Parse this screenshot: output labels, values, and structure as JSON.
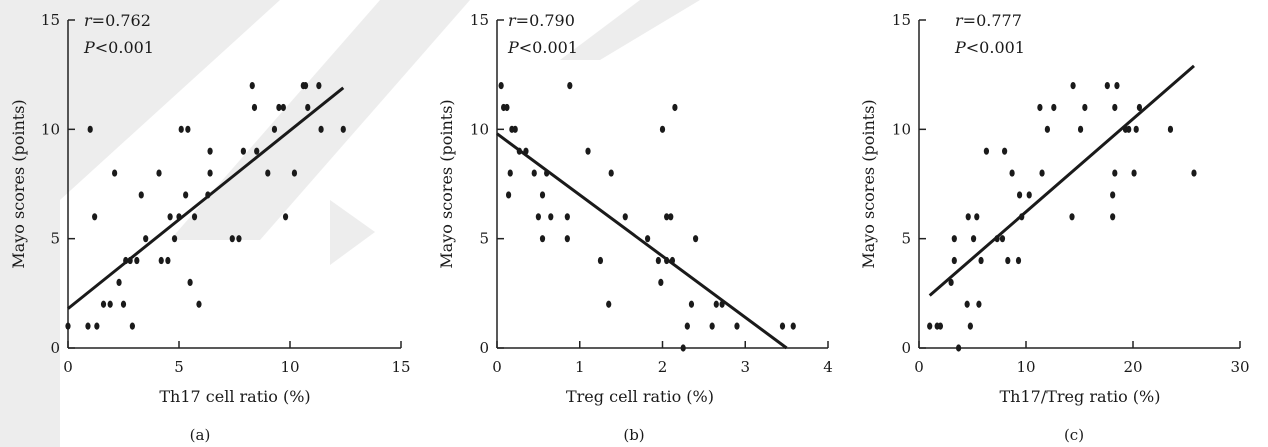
{
  "chart_data": [
    {
      "type": "scatter",
      "panel_label": "(a)",
      "xlabel": "Th17 cell ratio (%)",
      "ylabel": "Mayo scores (points)",
      "xlim": [
        0,
        15
      ],
      "ylim": [
        0,
        15
      ],
      "xticks": [
        0,
        5,
        10,
        15
      ],
      "yticks": [
        0,
        5,
        10,
        15
      ],
      "stat_r_symbol": "r",
      "stat_r_value": "=0.762",
      "stat_p_symbol": "P",
      "stat_p_value": "<0.001",
      "trend_line": {
        "x": [
          0,
          12.4
        ],
        "y": [
          1.8,
          11.9
        ]
      },
      "points": [
        [
          0,
          1
        ],
        [
          1.0,
          10
        ],
        [
          0.9,
          1
        ],
        [
          1.2,
          6
        ],
        [
          1.3,
          1
        ],
        [
          1.6,
          2
        ],
        [
          1.9,
          2
        ],
        [
          2.1,
          8
        ],
        [
          2.3,
          3
        ],
        [
          2.5,
          2
        ],
        [
          2.6,
          4
        ],
        [
          2.8,
          4
        ],
        [
          2.9,
          1
        ],
        [
          3.1,
          4
        ],
        [
          3.3,
          7
        ],
        [
          3.5,
          5
        ],
        [
          4.1,
          8
        ],
        [
          4.2,
          4
        ],
        [
          4.5,
          4
        ],
        [
          4.6,
          6
        ],
        [
          4.8,
          5
        ],
        [
          5.0,
          6
        ],
        [
          5.1,
          10
        ],
        [
          5.3,
          7
        ],
        [
          5.4,
          10
        ],
        [
          5.5,
          3
        ],
        [
          5.7,
          6
        ],
        [
          5.9,
          2
        ],
        [
          6.3,
          7
        ],
        [
          6.4,
          9
        ],
        [
          6.4,
          8
        ],
        [
          7.4,
          5
        ],
        [
          7.7,
          5
        ],
        [
          7.9,
          9
        ],
        [
          8.3,
          12
        ],
        [
          8.4,
          11
        ],
        [
          8.5,
          9
        ],
        [
          9.0,
          8
        ],
        [
          9.3,
          10
        ],
        [
          9.5,
          11
        ],
        [
          9.7,
          11
        ],
        [
          9.8,
          6
        ],
        [
          10.2,
          8
        ],
        [
          10.6,
          12
        ],
        [
          10.7,
          12
        ],
        [
          10.8,
          11
        ],
        [
          11.3,
          12
        ],
        [
          11.4,
          10
        ],
        [
          12.4,
          10
        ]
      ]
    },
    {
      "type": "scatter",
      "panel_label": "(b)",
      "xlabel": "Treg cell ratio (%)",
      "ylabel": "Mayo scores (points)",
      "xlim": [
        0,
        4
      ],
      "ylim": [
        0,
        15
      ],
      "xticks": [
        0,
        1,
        2,
        3,
        4
      ],
      "yticks": [
        0,
        5,
        10,
        15
      ],
      "stat_r_symbol": "r",
      "stat_r_value": "=0.790",
      "stat_p_symbol": "P",
      "stat_p_value": "<0.001",
      "trend_line": {
        "x": [
          0,
          3.5
        ],
        "y": [
          9.8,
          0
        ]
      },
      "points": [
        [
          0.05,
          12
        ],
        [
          0.08,
          11
        ],
        [
          0.12,
          11
        ],
        [
          0.14,
          7
        ],
        [
          0.16,
          8
        ],
        [
          0.18,
          10
        ],
        [
          0.22,
          10
        ],
        [
          0.27,
          9
        ],
        [
          0.35,
          9
        ],
        [
          0.45,
          8
        ],
        [
          0.5,
          6
        ],
        [
          0.55,
          7
        ],
        [
          0.55,
          5
        ],
        [
          0.6,
          8
        ],
        [
          0.65,
          6
        ],
        [
          0.85,
          6
        ],
        [
          0.85,
          5
        ],
        [
          0.88,
          12
        ],
        [
          1.1,
          9
        ],
        [
          1.25,
          4
        ],
        [
          1.35,
          2
        ],
        [
          1.38,
          8
        ],
        [
          1.55,
          6
        ],
        [
          1.82,
          5
        ],
        [
          1.95,
          4
        ],
        [
          1.98,
          3
        ],
        [
          2.0,
          10
        ],
        [
          2.05,
          6
        ],
        [
          2.05,
          4
        ],
        [
          2.1,
          6
        ],
        [
          2.12,
          4
        ],
        [
          2.15,
          11
        ],
        [
          2.25,
          0
        ],
        [
          2.3,
          1
        ],
        [
          2.35,
          2
        ],
        [
          2.4,
          5
        ],
        [
          2.6,
          1
        ],
        [
          2.65,
          2
        ],
        [
          2.72,
          2
        ],
        [
          2.9,
          1
        ],
        [
          3.45,
          1
        ],
        [
          3.58,
          1
        ]
      ]
    },
    {
      "type": "scatter",
      "panel_label": "(c)",
      "xlabel": "Th17/Treg ratio (%)",
      "ylabel": "Mayo scores (points)",
      "xlim": [
        0,
        30
      ],
      "ylim": [
        0,
        15
      ],
      "xticks": [
        0,
        10,
        20,
        30
      ],
      "yticks": [
        0,
        5,
        10,
        15
      ],
      "stat_r_symbol": "r",
      "stat_r_value": "=0.777",
      "stat_p_symbol": "P",
      "stat_p_value": "<0.001",
      "trend_line": {
        "x": [
          1,
          25.7
        ],
        "y": [
          2.4,
          12.9
        ]
      },
      "points": [
        [
          1.0,
          1
        ],
        [
          1.7,
          1
        ],
        [
          2.0,
          1
        ],
        [
          3.0,
          3
        ],
        [
          3.3,
          5
        ],
        [
          3.3,
          4
        ],
        [
          3.7,
          0
        ],
        [
          4.5,
          2
        ],
        [
          4.6,
          6
        ],
        [
          4.8,
          1
        ],
        [
          5.1,
          5
        ],
        [
          5.4,
          6
        ],
        [
          5.6,
          2
        ],
        [
          5.8,
          4
        ],
        [
          6.3,
          9
        ],
        [
          7.3,
          5
        ],
        [
          7.8,
          5
        ],
        [
          8.0,
          9
        ],
        [
          8.3,
          4
        ],
        [
          8.7,
          8
        ],
        [
          9.3,
          4
        ],
        [
          9.4,
          7
        ],
        [
          9.6,
          6
        ],
        [
          10.3,
          7
        ],
        [
          11.3,
          11
        ],
        [
          11.5,
          8
        ],
        [
          12.0,
          10
        ],
        [
          12.6,
          11
        ],
        [
          14.3,
          6
        ],
        [
          14.4,
          12
        ],
        [
          15.1,
          10
        ],
        [
          15.5,
          11
        ],
        [
          17.6,
          12
        ],
        [
          18.1,
          7
        ],
        [
          18.1,
          6
        ],
        [
          18.3,
          8
        ],
        [
          18.3,
          11
        ],
        [
          18.5,
          12
        ],
        [
          19.3,
          10
        ],
        [
          19.6,
          10
        ],
        [
          20.1,
          8
        ],
        [
          20.3,
          10
        ],
        [
          20.6,
          11
        ],
        [
          23.5,
          10
        ],
        [
          25.7,
          8
        ]
      ]
    }
  ]
}
